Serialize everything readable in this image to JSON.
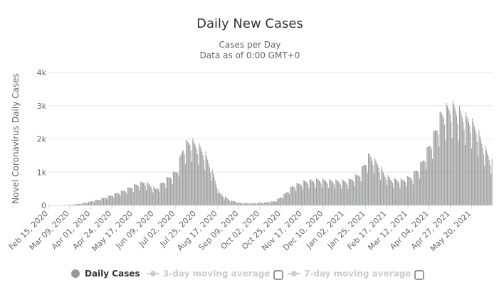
{
  "chart_data": {
    "type": "bar",
    "title": "Daily New Cases",
    "subtitle_lines": [
      "Cases per Day",
      "Data as of 0:00 GMT+0"
    ],
    "ylabel": "Novel Coronavirus Daily Cases",
    "xlabel": "",
    "ylim": [
      0,
      4000
    ],
    "yticks": [
      0,
      1000,
      2000,
      3000,
      4000
    ],
    "ytick_labels": [
      "0",
      "1k",
      "2k",
      "3k",
      "4k"
    ],
    "x_range": [
      "2020-02-15",
      "2021-06-06"
    ],
    "xtick_labels": [
      "Feb 15, 2020",
      "Mar 09, 2020",
      "Apr 01, 2020",
      "Apr 24, 2020",
      "May 17, 2020",
      "Jun 09, 2020",
      "Jul 02, 2020",
      "Jul 25, 2020",
      "Aug 17, 2020",
      "Sep 09, 2020",
      "Oct 02, 2020",
      "Oct 25, 2020",
      "Nov 17, 2020",
      "Dec 10, 2020",
      "Jan 02, 2021",
      "Jan 25, 2021",
      "Feb 17, 2021",
      "Mar 12, 2021",
      "Apr 04, 2021",
      "Apr 27, 2021",
      "May 20, 2021"
    ],
    "grid": true,
    "bar_color": "#999999",
    "series": [
      {
        "name": "Daily Cases",
        "weekly_points": [
          [
            "2020-02-15",
            0
          ],
          [
            "2020-03-01",
            5
          ],
          [
            "2020-03-09",
            15
          ],
          [
            "2020-03-22",
            60
          ],
          [
            "2020-04-01",
            120
          ],
          [
            "2020-04-15",
            220
          ],
          [
            "2020-04-24",
            310
          ],
          [
            "2020-05-05",
            420
          ],
          [
            "2020-05-17",
            580
          ],
          [
            "2020-05-28",
            680
          ],
          [
            "2020-06-05",
            560
          ],
          [
            "2020-06-09",
            470
          ],
          [
            "2020-06-18",
            700
          ],
          [
            "2020-07-02",
            1000
          ],
          [
            "2020-07-09",
            1700
          ],
          [
            "2020-07-16",
            1850
          ],
          [
            "2020-07-25",
            1700
          ],
          [
            "2020-08-02",
            1450
          ],
          [
            "2020-08-10",
            900
          ],
          [
            "2020-08-17",
            350
          ],
          [
            "2020-08-28",
            150
          ],
          [
            "2020-09-09",
            70
          ],
          [
            "2020-09-20",
            60
          ],
          [
            "2020-10-02",
            80
          ],
          [
            "2020-10-15",
            120
          ],
          [
            "2020-10-25",
            300
          ],
          [
            "2020-11-03",
            550
          ],
          [
            "2020-11-17",
            700
          ],
          [
            "2020-12-01",
            740
          ],
          [
            "2020-12-10",
            720
          ],
          [
            "2020-12-22",
            700
          ],
          [
            "2021-01-02",
            700
          ],
          [
            "2021-01-14",
            900
          ],
          [
            "2021-01-25",
            1450
          ],
          [
            "2021-02-03",
            1200
          ],
          [
            "2021-02-10",
            900
          ],
          [
            "2021-02-17",
            760
          ],
          [
            "2021-03-01",
            720
          ],
          [
            "2021-03-12",
            850
          ],
          [
            "2021-03-22",
            1200
          ],
          [
            "2021-04-04",
            2000
          ],
          [
            "2021-04-12",
            2600
          ],
          [
            "2021-04-20",
            2800
          ],
          [
            "2021-04-27",
            2820
          ],
          [
            "2021-05-06",
            2550
          ],
          [
            "2021-05-13",
            2450
          ],
          [
            "2021-05-20",
            2200
          ],
          [
            "2021-05-28",
            1700
          ],
          [
            "2021-06-06",
            1250
          ]
        ]
      },
      {
        "name": "3-day moving average",
        "values": []
      },
      {
        "name": "7-day moving average",
        "values": []
      }
    ],
    "legend_position": "bottom-center"
  },
  "colors": {
    "bars": "#999999",
    "legend_active": "#333333",
    "legend_inactive": "#cccccc",
    "grid": "#e6e6e6",
    "axis": "#ccd6eb"
  }
}
